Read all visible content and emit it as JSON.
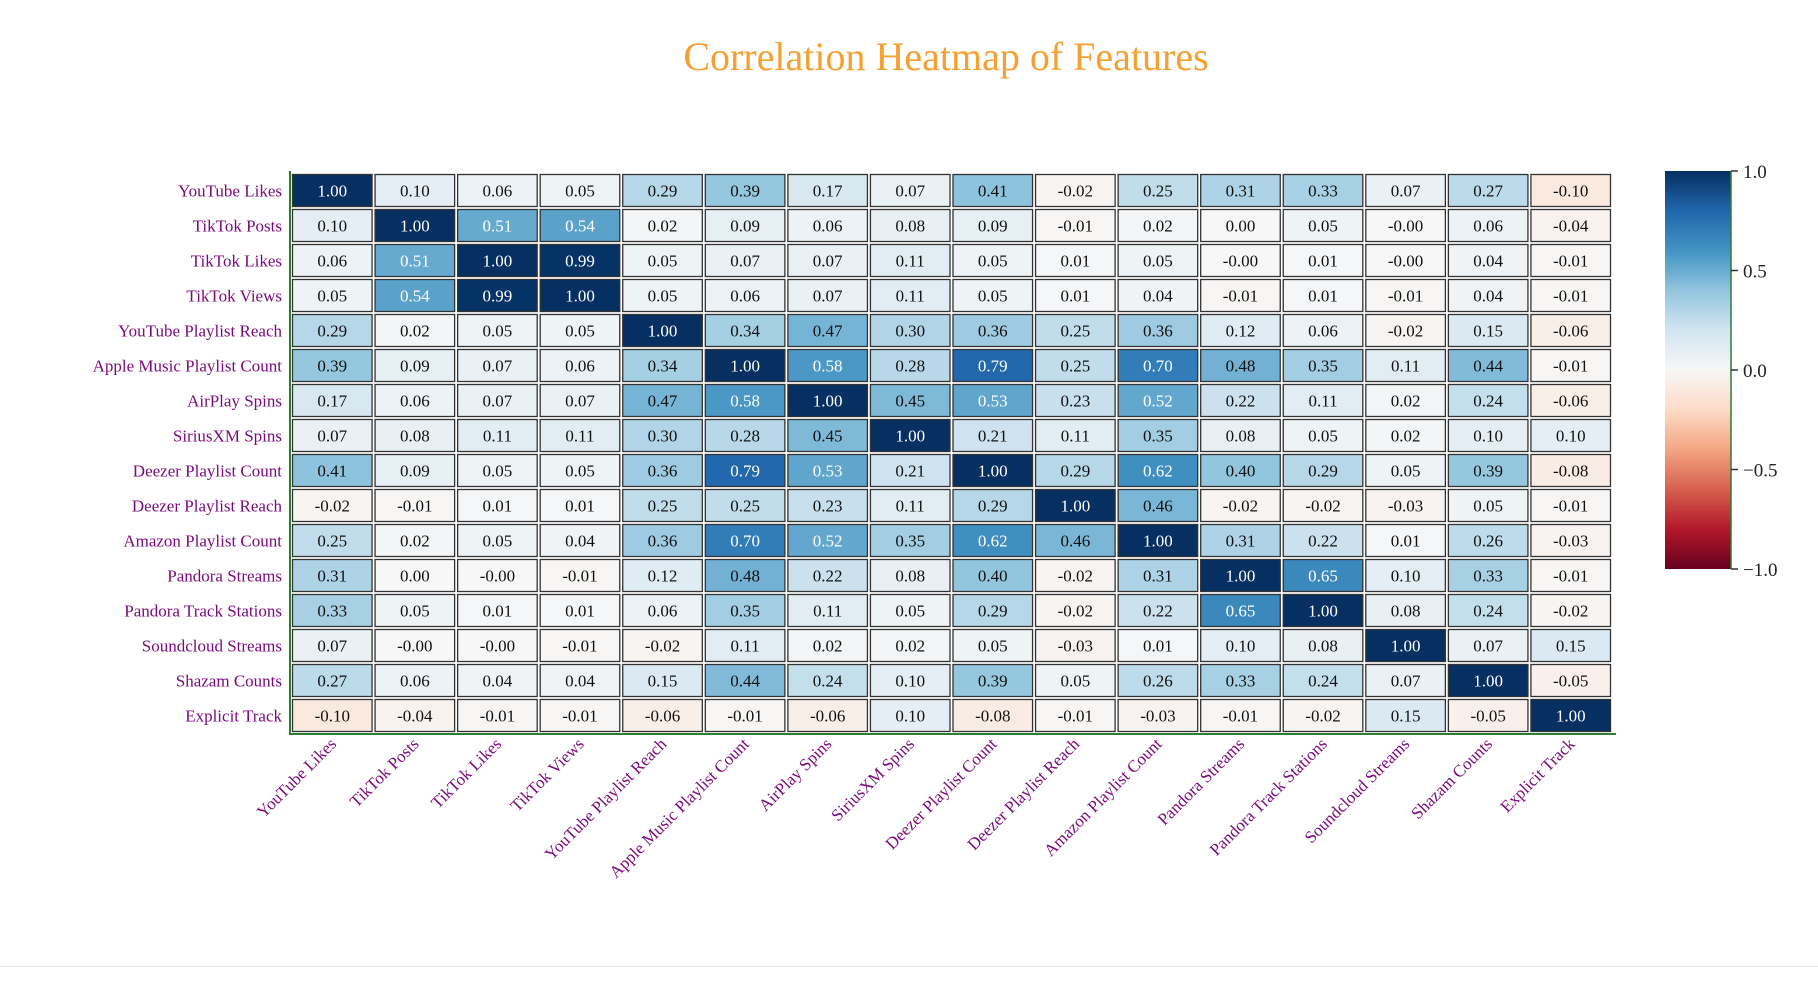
{
  "chart_data": {
    "type": "heatmap",
    "title": "Correlation Heatmap of Features",
    "title_color": "#f5a033",
    "label_color": "#7a0a7a",
    "axis_color": "#2e7d32",
    "colorscale": "RdBu",
    "zrange": [
      -1.0,
      1.0
    ],
    "colorbar_ticks": [
      "1.0",
      "0.5",
      "0.0",
      "−0.5",
      "−1.0"
    ],
    "colorbar_tick_values": [
      1.0,
      0.5,
      0.0,
      -0.5,
      -1.0
    ],
    "labels": [
      "YouTube Likes",
      "TikTok Posts",
      "TikTok Likes",
      "TikTok Views",
      "YouTube Playlist Reach",
      "Apple Music Playlist Count",
      "AirPlay Spins",
      "SiriusXM Spins",
      "Deezer Playlist Count",
      "Deezer Playlist Reach",
      "Amazon Playlist Count",
      "Pandora Streams",
      "Pandora Track Stations",
      "Soundcloud Streams",
      "Shazam Counts",
      "Explicit Track"
    ],
    "cell_text": [
      [
        "1.00",
        "0.10",
        "0.06",
        "0.05",
        "0.29",
        "0.39",
        "0.17",
        "0.07",
        "0.41",
        "-0.02",
        "0.25",
        "0.31",
        "0.33",
        "0.07",
        "0.27",
        "-0.10"
      ],
      [
        "0.10",
        "1.00",
        "0.51",
        "0.54",
        "0.02",
        "0.09",
        "0.06",
        "0.08",
        "0.09",
        "-0.01",
        "0.02",
        "0.00",
        "0.05",
        "-0.00",
        "0.06",
        "-0.04"
      ],
      [
        "0.06",
        "0.51",
        "1.00",
        "0.99",
        "0.05",
        "0.07",
        "0.07",
        "0.11",
        "0.05",
        "0.01",
        "0.05",
        "-0.00",
        "0.01",
        "-0.00",
        "0.04",
        "-0.01"
      ],
      [
        "0.05",
        "0.54",
        "0.99",
        "1.00",
        "0.05",
        "0.06",
        "0.07",
        "0.11",
        "0.05",
        "0.01",
        "0.04",
        "-0.01",
        "0.01",
        "-0.01",
        "0.04",
        "-0.01"
      ],
      [
        "0.29",
        "0.02",
        "0.05",
        "0.05",
        "1.00",
        "0.34",
        "0.47",
        "0.30",
        "0.36",
        "0.25",
        "0.36",
        "0.12",
        "0.06",
        "-0.02",
        "0.15",
        "-0.06"
      ],
      [
        "0.39",
        "0.09",
        "0.07",
        "0.06",
        "0.34",
        "1.00",
        "0.58",
        "0.28",
        "0.79",
        "0.25",
        "0.70",
        "0.48",
        "0.35",
        "0.11",
        "0.44",
        "-0.01"
      ],
      [
        "0.17",
        "0.06",
        "0.07",
        "0.07",
        "0.47",
        "0.58",
        "1.00",
        "0.45",
        "0.53",
        "0.23",
        "0.52",
        "0.22",
        "0.11",
        "0.02",
        "0.24",
        "-0.06"
      ],
      [
        "0.07",
        "0.08",
        "0.11",
        "0.11",
        "0.30",
        "0.28",
        "0.45",
        "1.00",
        "0.21",
        "0.11",
        "0.35",
        "0.08",
        "0.05",
        "0.02",
        "0.10",
        "0.10"
      ],
      [
        "0.41",
        "0.09",
        "0.05",
        "0.05",
        "0.36",
        "0.79",
        "0.53",
        "0.21",
        "1.00",
        "0.29",
        "0.62",
        "0.40",
        "0.29",
        "0.05",
        "0.39",
        "-0.08"
      ],
      [
        "-0.02",
        "-0.01",
        "0.01",
        "0.01",
        "0.25",
        "0.25",
        "0.23",
        "0.11",
        "0.29",
        "1.00",
        "0.46",
        "-0.02",
        "-0.02",
        "-0.03",
        "0.05",
        "-0.01"
      ],
      [
        "0.25",
        "0.02",
        "0.05",
        "0.04",
        "0.36",
        "0.70",
        "0.52",
        "0.35",
        "0.62",
        "0.46",
        "1.00",
        "0.31",
        "0.22",
        "0.01",
        "0.26",
        "-0.03"
      ],
      [
        "0.31",
        "0.00",
        "-0.00",
        "-0.01",
        "0.12",
        "0.48",
        "0.22",
        "0.08",
        "0.40",
        "-0.02",
        "0.31",
        "1.00",
        "0.65",
        "0.10",
        "0.33",
        "-0.01"
      ],
      [
        "0.33",
        "0.05",
        "0.01",
        "0.01",
        "0.06",
        "0.35",
        "0.11",
        "0.05",
        "0.29",
        "-0.02",
        "0.22",
        "0.65",
        "1.00",
        "0.08",
        "0.24",
        "-0.02"
      ],
      [
        "0.07",
        "-0.00",
        "-0.00",
        "-0.01",
        "-0.02",
        "0.11",
        "0.02",
        "0.02",
        "0.05",
        "-0.03",
        "0.01",
        "0.10",
        "0.08",
        "1.00",
        "0.07",
        "0.15"
      ],
      [
        "0.27",
        "0.06",
        "0.04",
        "0.04",
        "0.15",
        "0.44",
        "0.24",
        "0.10",
        "0.39",
        "0.05",
        "0.26",
        "0.33",
        "0.24",
        "0.07",
        "1.00",
        "-0.05"
      ],
      [
        "-0.10",
        "-0.04",
        "-0.01",
        "-0.01",
        "-0.06",
        "-0.01",
        "-0.06",
        "0.10",
        "-0.08",
        "-0.01",
        "-0.03",
        "-0.01",
        "-0.02",
        "0.15",
        "-0.05",
        "1.00"
      ]
    ]
  }
}
